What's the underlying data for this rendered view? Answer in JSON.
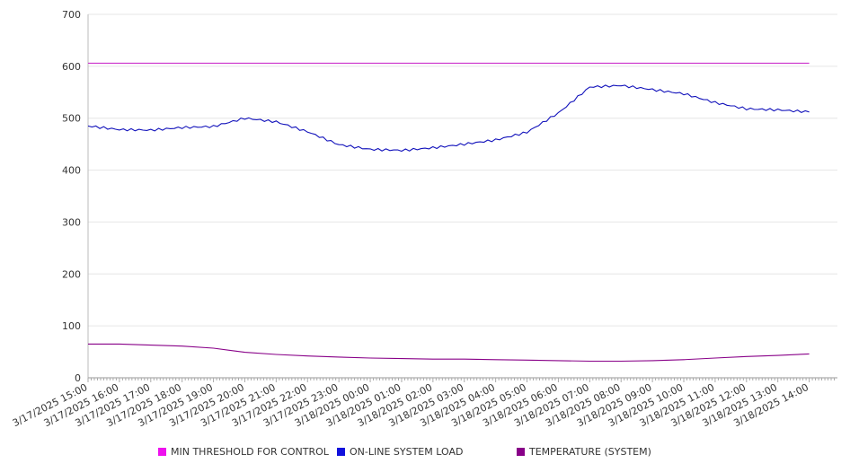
{
  "chart_data": {
    "type": "line",
    "title": "",
    "xlabel": "",
    "ylabel": "",
    "ylim": [
      0,
      700
    ],
    "yticks": [
      0,
      100,
      200,
      300,
      400,
      500,
      600,
      700
    ],
    "grid": true,
    "legend_position": "bottom",
    "x_tick_labels": [
      "3/17/2025 15:00",
      "3/17/2025 16:00",
      "3/17/2025 17:00",
      "3/17/2025 18:00",
      "3/17/2025 19:00",
      "3/17/2025 20:00",
      "3/17/2025 21:00",
      "3/17/2025 22:00",
      "3/17/2025 23:00",
      "3/18/2025 00:00",
      "3/18/2025 01:00",
      "3/18/2025 02:00",
      "3/18/2025 03:00",
      "3/18/2025 04:00",
      "3/18/2025 05:00",
      "3/18/2025 06:00",
      "3/18/2025 07:00",
      "3/18/2025 08:00",
      "3/18/2025 09:00",
      "3/18/2025 10:00",
      "3/18/2025 11:00",
      "3/18/2025 12:00",
      "3/18/2025 13:00",
      "3/18/2025 14:00"
    ],
    "series": [
      {
        "name": "MIN THRESHOLD FOR CONTROL",
        "color": "#cc33cc",
        "x": [
          "3/17/2025 15:00",
          "3/18/2025 14:00"
        ],
        "values": [
          606,
          606
        ]
      },
      {
        "name": "ON-LINE SYSTEM LOAD",
        "color": "#1111bb",
        "x": [
          "3/17/2025 15:00",
          "3/17/2025 16:00",
          "3/17/2025 17:00",
          "3/17/2025 18:00",
          "3/17/2025 19:00",
          "3/17/2025 20:00",
          "3/17/2025 21:00",
          "3/17/2025 22:00",
          "3/17/2025 23:00",
          "3/18/2025 00:00",
          "3/18/2025 01:00",
          "3/18/2025 02:00",
          "3/18/2025 03:00",
          "3/18/2025 04:00",
          "3/18/2025 05:00",
          "3/18/2025 06:00",
          "3/18/2025 07:00",
          "3/18/2025 08:00",
          "3/18/2025 09:00",
          "3/18/2025 10:00",
          "3/18/2025 11:00",
          "3/18/2025 12:00",
          "3/18/2025 13:00",
          "3/18/2025 14:00"
        ],
        "values": [
          485,
          478,
          477,
          482,
          484,
          500,
          493,
          474,
          449,
          440,
          438,
          443,
          450,
          458,
          473,
          510,
          560,
          563,
          555,
          547,
          530,
          518,
          516,
          512
        ]
      },
      {
        "name": "TEMPERATURE (SYSTEM)",
        "color": "#880088",
        "x": [
          "3/17/2025 15:00",
          "3/17/2025 16:00",
          "3/17/2025 17:00",
          "3/17/2025 18:00",
          "3/17/2025 19:00",
          "3/17/2025 20:00",
          "3/17/2025 21:00",
          "3/17/2025 22:00",
          "3/17/2025 23:00",
          "3/18/2025 00:00",
          "3/18/2025 01:00",
          "3/18/2025 02:00",
          "3/18/2025 03:00",
          "3/18/2025 04:00",
          "3/18/2025 05:00",
          "3/18/2025 06:00",
          "3/18/2025 07:00",
          "3/18/2025 08:00",
          "3/18/2025 09:00",
          "3/18/2025 10:00",
          "3/18/2025 11:00",
          "3/18/2025 12:00",
          "3/18/2025 13:00",
          "3/18/2025 14:00"
        ],
        "values": [
          65,
          65,
          63,
          61,
          57,
          49,
          45,
          42,
          40,
          38,
          37,
          36,
          36,
          35,
          34,
          33,
          32,
          32,
          33,
          35,
          38,
          41,
          43,
          46
        ]
      }
    ],
    "legend": [
      {
        "label": "MIN THRESHOLD FOR CONTROL",
        "color": "#ee11ee"
      },
      {
        "label": "ON-LINE SYSTEM LOAD",
        "color": "#1111dd"
      },
      {
        "label": "TEMPERATURE (SYSTEM)",
        "color": "#880088"
      }
    ]
  }
}
